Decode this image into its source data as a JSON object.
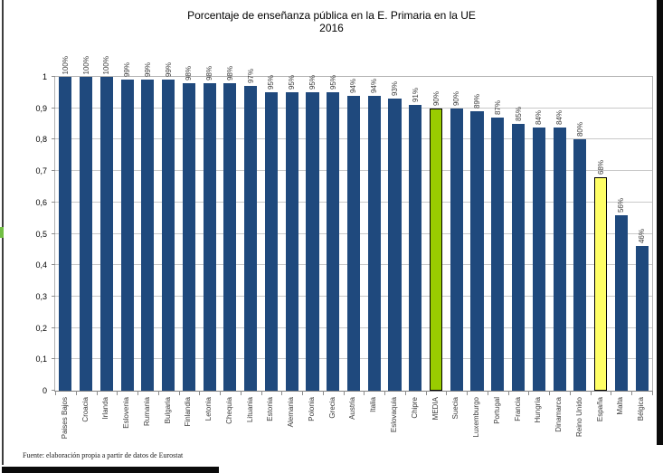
{
  "header": {
    "title": "Porcentaje de enseñanza pública en la E. Primaria en la UE",
    "subtitle": "2016"
  },
  "footer": {
    "source": "Fuente: elaboración propia a partir de datos de Eurostat"
  },
  "chart_data": {
    "type": "bar",
    "title": "Porcentaje de enseñanza pública en la E. Primaria en la UE",
    "subtitle": "2016",
    "categories": [
      "Paises Bajos",
      "Croacia",
      "Irlanda",
      "Eslovenia",
      "Rumania",
      "Bulgaria",
      "Finlandia",
      "Letonia",
      "Chequia",
      "Lituania",
      "Estonia",
      "Alemania",
      "Polonia",
      "Grecia",
      "Austria",
      "Italia",
      "Eslovaquia",
      "Chipre",
      "MEDIA",
      "Suecia",
      "Luxemburgo",
      "Portugal",
      "Francia",
      "Hungría",
      "Dinamarca",
      "Reino Unido",
      "España",
      "Malta",
      "Bélgica"
    ],
    "values": [
      100,
      100,
      100,
      99,
      99,
      99,
      98,
      98,
      98,
      97,
      95,
      95,
      95,
      95,
      94,
      94,
      93,
      91,
      90,
      90,
      89,
      87,
      85,
      84,
      84,
      80,
      68,
      56,
      46
    ],
    "value_label_suffix": "%",
    "y_ticks": [
      "1",
      "0,9",
      "0,8",
      "0,7",
      "0,6",
      "0,5",
      "0,4",
      "0,3",
      "0,2",
      "0,1",
      "0"
    ],
    "ylim": [
      0,
      1
    ],
    "grid": true,
    "legend": "none",
    "bar_color": "#1F497D",
    "highlight_colors": {
      "MEDIA": "#99CC00",
      "España": "#FFFF66"
    },
    "highlight_border": "#000000",
    "source": "Fuente: elaboración propia a partir de datos de Eurostat"
  }
}
